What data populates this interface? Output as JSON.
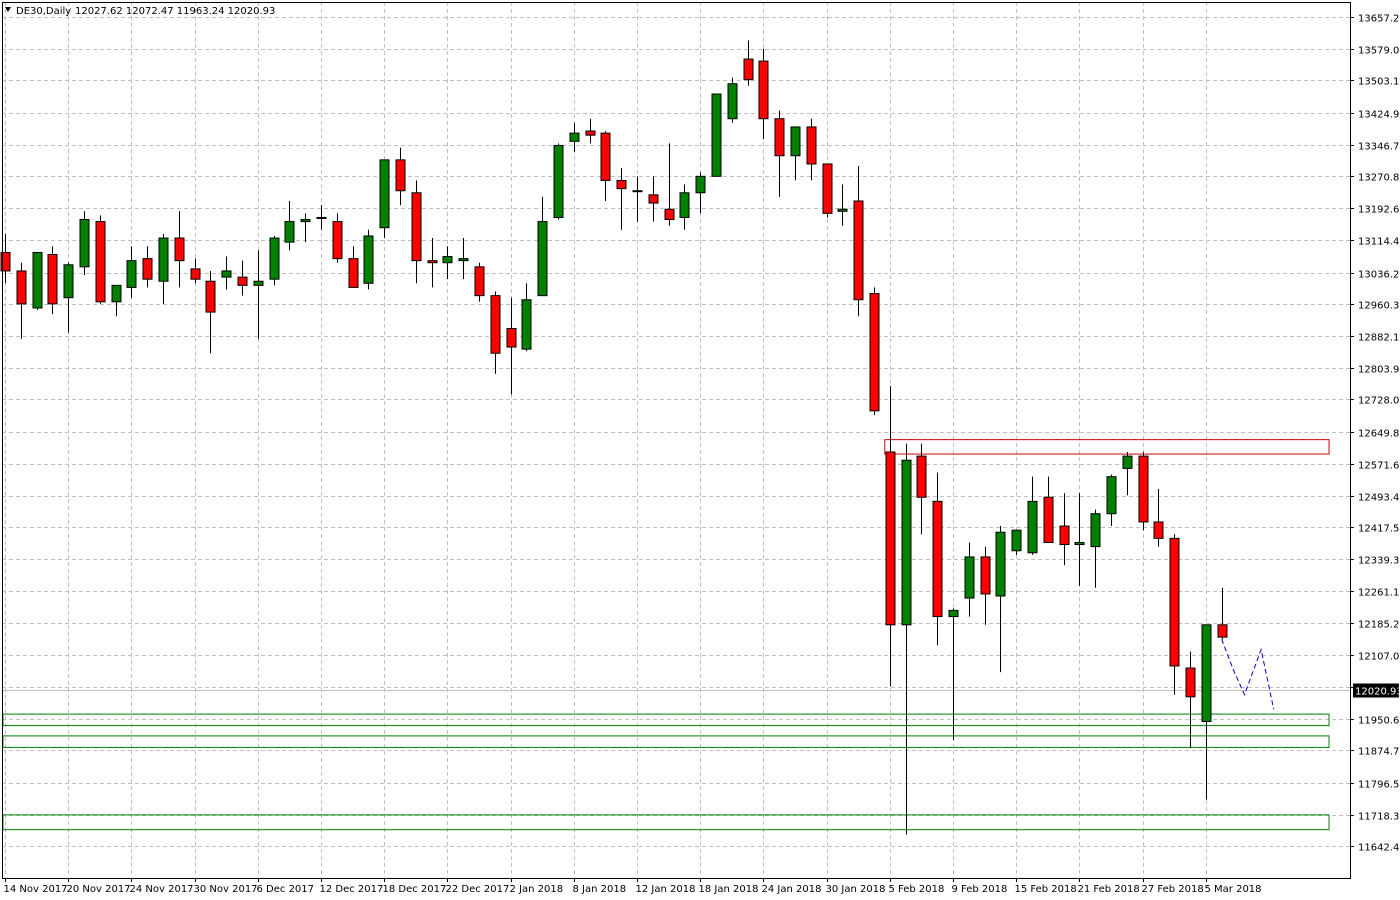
{
  "chart_data": {
    "type": "candlestick",
    "symbol_header": "DE30,Daily",
    "ohlc_header": "12027.62 12072.47 11963.24 12020.93",
    "current_price": 12020.93,
    "current_price_label": "12020.93",
    "ylim": [
      11640.0,
      13700.0
    ],
    "y_ticks": [
      "13657.20",
      "13579.00",
      "13503.10",
      "13424.90",
      "13346.70",
      "13270.80",
      "13192.60",
      "13114.40",
      "13036.20",
      "12960.30",
      "12882.10",
      "12803.90",
      "12728.00",
      "12649.80",
      "12571.60",
      "12493.40",
      "12417.50",
      "12339.30",
      "12261.10",
      "12185.20",
      "12107.00",
      "12028.80",
      "11950.60",
      "11874.70",
      "11796.50",
      "11718.30",
      "11642.40"
    ],
    "x_labels": [
      {
        "index": 0,
        "label": "14 Nov 2017"
      },
      {
        "index": 4,
        "label": "20 Nov 2017"
      },
      {
        "index": 8,
        "label": "24 Nov 2017"
      },
      {
        "index": 12,
        "label": "30 Nov 2017"
      },
      {
        "index": 16,
        "label": "6 Dec 2017"
      },
      {
        "index": 20,
        "label": "12 Dec 2017"
      },
      {
        "index": 24,
        "label": "18 Dec 2017"
      },
      {
        "index": 28,
        "label": "22 Dec 2017"
      },
      {
        "index": 32,
        "label": "2 Jan 2018"
      },
      {
        "index": 36,
        "label": "8 Jan 2018"
      },
      {
        "index": 40,
        "label": "12 Jan 2018"
      },
      {
        "index": 44,
        "label": "18 Jan 2018"
      },
      {
        "index": 48,
        "label": "24 Jan 2018"
      },
      {
        "index": 52,
        "label": "30 Jan 2018"
      },
      {
        "index": 56,
        "label": "5 Feb 2018"
      },
      {
        "index": 60,
        "label": "9 Feb 2018"
      },
      {
        "index": 64,
        "label": "15 Feb 2018"
      },
      {
        "index": 68,
        "label": "21 Feb 2018"
      },
      {
        "index": 72,
        "label": "27 Feb 2018"
      },
      {
        "index": 76,
        "label": "5 Mar 2018"
      }
    ],
    "candles": [
      {
        "o": 13085,
        "h": 13130,
        "l": 13010,
        "c": 13040
      },
      {
        "o": 13040,
        "h": 13060,
        "l": 12875,
        "c": 12960
      },
      {
        "o": 12950,
        "h": 13080,
        "l": 12945,
        "c": 13085
      },
      {
        "o": 13080,
        "h": 13100,
        "l": 12935,
        "c": 12960
      },
      {
        "o": 12975,
        "h": 13060,
        "l": 12890,
        "c": 13055
      },
      {
        "o": 13050,
        "h": 13185,
        "l": 13030,
        "c": 13165
      },
      {
        "o": 13160,
        "h": 13175,
        "l": 12960,
        "c": 12965
      },
      {
        "o": 12965,
        "h": 13000,
        "l": 12930,
        "c": 13005
      },
      {
        "o": 13000,
        "h": 13100,
        "l": 12975,
        "c": 13065
      },
      {
        "o": 13070,
        "h": 13100,
        "l": 13000,
        "c": 13020
      },
      {
        "o": 13015,
        "h": 13130,
        "l": 12960,
        "c": 13120
      },
      {
        "o": 13120,
        "h": 13185,
        "l": 13000,
        "c": 13065
      },
      {
        "o": 13045,
        "h": 13070,
        "l": 13010,
        "c": 13020
      },
      {
        "o": 13015,
        "h": 13040,
        "l": 12840,
        "c": 12940
      },
      {
        "o": 13025,
        "h": 13075,
        "l": 12995,
        "c": 13040
      },
      {
        "o": 13025,
        "h": 13065,
        "l": 12980,
        "c": 13005
      },
      {
        "o": 13005,
        "h": 13090,
        "l": 12875,
        "c": 13015
      },
      {
        "o": 13020,
        "h": 13125,
        "l": 13005,
        "c": 13120
      },
      {
        "o": 13110,
        "h": 13210,
        "l": 13090,
        "c": 13160
      },
      {
        "o": 13160,
        "h": 13180,
        "l": 13110,
        "c": 13165
      },
      {
        "o": 13170,
        "h": 13200,
        "l": 13140,
        "c": 13170
      },
      {
        "o": 13160,
        "h": 13180,
        "l": 13060,
        "c": 13070
      },
      {
        "o": 13070,
        "h": 13100,
        "l": 13000,
        "c": 13000
      },
      {
        "o": 13010,
        "h": 13140,
        "l": 12995,
        "c": 13125
      },
      {
        "o": 13145,
        "h": 13310,
        "l": 13120,
        "c": 13310
      },
      {
        "o": 13310,
        "h": 13340,
        "l": 13200,
        "c": 13235
      },
      {
        "o": 13230,
        "h": 13260,
        "l": 13010,
        "c": 13065
      },
      {
        "o": 13065,
        "h": 13120,
        "l": 13000,
        "c": 13060
      },
      {
        "o": 13060,
        "h": 13100,
        "l": 13020,
        "c": 13075
      },
      {
        "o": 13065,
        "h": 13120,
        "l": 13020,
        "c": 13070
      },
      {
        "o": 13050,
        "h": 13060,
        "l": 12965,
        "c": 12980
      },
      {
        "o": 12980,
        "h": 12990,
        "l": 12790,
        "c": 12840
      },
      {
        "o": 12900,
        "h": 12975,
        "l": 12740,
        "c": 12855
      },
      {
        "o": 12850,
        "h": 13010,
        "l": 12845,
        "c": 12970
      },
      {
        "o": 12980,
        "h": 13220,
        "l": 12980,
        "c": 13160
      },
      {
        "o": 13170,
        "h": 13350,
        "l": 13165,
        "c": 13345
      },
      {
        "o": 13355,
        "h": 13400,
        "l": 13330,
        "c": 13375
      },
      {
        "o": 13380,
        "h": 13410,
        "l": 13350,
        "c": 13370
      },
      {
        "o": 13375,
        "h": 13380,
        "l": 13210,
        "c": 13260
      },
      {
        "o": 13260,
        "h": 13290,
        "l": 13140,
        "c": 13240
      },
      {
        "o": 13235,
        "h": 13270,
        "l": 13160,
        "c": 13235
      },
      {
        "o": 13225,
        "h": 13270,
        "l": 13160,
        "c": 13205
      },
      {
        "o": 13190,
        "h": 13350,
        "l": 13150,
        "c": 13165
      },
      {
        "o": 13170,
        "h": 13250,
        "l": 13140,
        "c": 13230
      },
      {
        "o": 13230,
        "h": 13280,
        "l": 13180,
        "c": 13270
      },
      {
        "o": 13270,
        "h": 13470,
        "l": 13270,
        "c": 13470
      },
      {
        "o": 13410,
        "h": 13510,
        "l": 13400,
        "c": 13495
      },
      {
        "o": 13555,
        "h": 13600,
        "l": 13490,
        "c": 13505
      },
      {
        "o": 13550,
        "h": 13580,
        "l": 13360,
        "c": 13410
      },
      {
        "o": 13410,
        "h": 13430,
        "l": 13220,
        "c": 13320
      },
      {
        "o": 13320,
        "h": 13380,
        "l": 13260,
        "c": 13390
      },
      {
        "o": 13390,
        "h": 13410,
        "l": 13260,
        "c": 13300
      },
      {
        "o": 13300,
        "h": 13300,
        "l": 13170,
        "c": 13180
      },
      {
        "o": 13185,
        "h": 13250,
        "l": 13150,
        "c": 13190
      },
      {
        "o": 13210,
        "h": 13295,
        "l": 12930,
        "c": 12970
      },
      {
        "o": 12985,
        "h": 13000,
        "l": 12690,
        "c": 12700
      },
      {
        "o": 12600,
        "h": 12760,
        "l": 12030,
        "c": 12180
      },
      {
        "o": 12180,
        "h": 12620,
        "l": 11670,
        "c": 12580
      },
      {
        "o": 12590,
        "h": 12620,
        "l": 12400,
        "c": 12490
      },
      {
        "o": 12480,
        "h": 12550,
        "l": 12130,
        "c": 12200
      },
      {
        "o": 12200,
        "h": 12220,
        "l": 11900,
        "c": 12215
      },
      {
        "o": 12245,
        "h": 12380,
        "l": 12200,
        "c": 12345
      },
      {
        "o": 12345,
        "h": 12370,
        "l": 12180,
        "c": 12255
      },
      {
        "o": 12250,
        "h": 12420,
        "l": 12065,
        "c": 12405
      },
      {
        "o": 12360,
        "h": 12410,
        "l": 12350,
        "c": 12410
      },
      {
        "o": 12355,
        "h": 12540,
        "l": 12350,
        "c": 12480
      },
      {
        "o": 12490,
        "h": 12540,
        "l": 12380,
        "c": 12380
      },
      {
        "o": 12420,
        "h": 12500,
        "l": 12325,
        "c": 12375
      },
      {
        "o": 12375,
        "h": 12500,
        "l": 12275,
        "c": 12380
      },
      {
        "o": 12370,
        "h": 12460,
        "l": 12270,
        "c": 12450
      },
      {
        "o": 12450,
        "h": 12545,
        "l": 12420,
        "c": 12540
      },
      {
        "o": 12560,
        "h": 12600,
        "l": 12495,
        "c": 12590
      },
      {
        "o": 12590,
        "h": 12600,
        "l": 12410,
        "c": 12430
      },
      {
        "o": 12430,
        "h": 12510,
        "l": 12370,
        "c": 12390
      },
      {
        "o": 12390,
        "h": 12400,
        "l": 12010,
        "c": 12080
      },
      {
        "o": 12075,
        "h": 12115,
        "l": 11880,
        "c": 12005
      },
      {
        "o": 11945,
        "h": 12180,
        "l": 11755,
        "c": 12180
      },
      {
        "o": 12180,
        "h": 12270,
        "l": 12145,
        "c": 12150
      }
    ],
    "zones": [
      {
        "type": "resistance",
        "top": 12630,
        "bottom": 12595,
        "from_index": 56,
        "to_index": 83.8
      },
      {
        "type": "support",
        "top": 11963,
        "bottom": 11935,
        "from_index": 0,
        "to_index": 83.8
      },
      {
        "type": "support",
        "top": 11910,
        "bottom": 11882,
        "from_index": 0,
        "to_index": 83.8
      },
      {
        "type": "support",
        "top": 11718,
        "bottom": 11682,
        "from_index": 0,
        "to_index": 83.8
      }
    ],
    "projection": [
      {
        "i": 77.0,
        "v": 12145
      },
      {
        "i": 77.75,
        "v": 12070
      },
      {
        "i": 78.45,
        "v": 12010
      },
      {
        "i": 79.5,
        "v": 12120
      },
      {
        "i": 80.3,
        "v": 11975
      }
    ],
    "colors": {
      "bull": "#008000",
      "bear": "#ff0000",
      "wick": "#000000",
      "grid": "#c0c0c0",
      "resistance_zone": "#cc0000",
      "support_zone": "#008000",
      "projection": "#0000cc",
      "price_tag": "#000000"
    }
  }
}
